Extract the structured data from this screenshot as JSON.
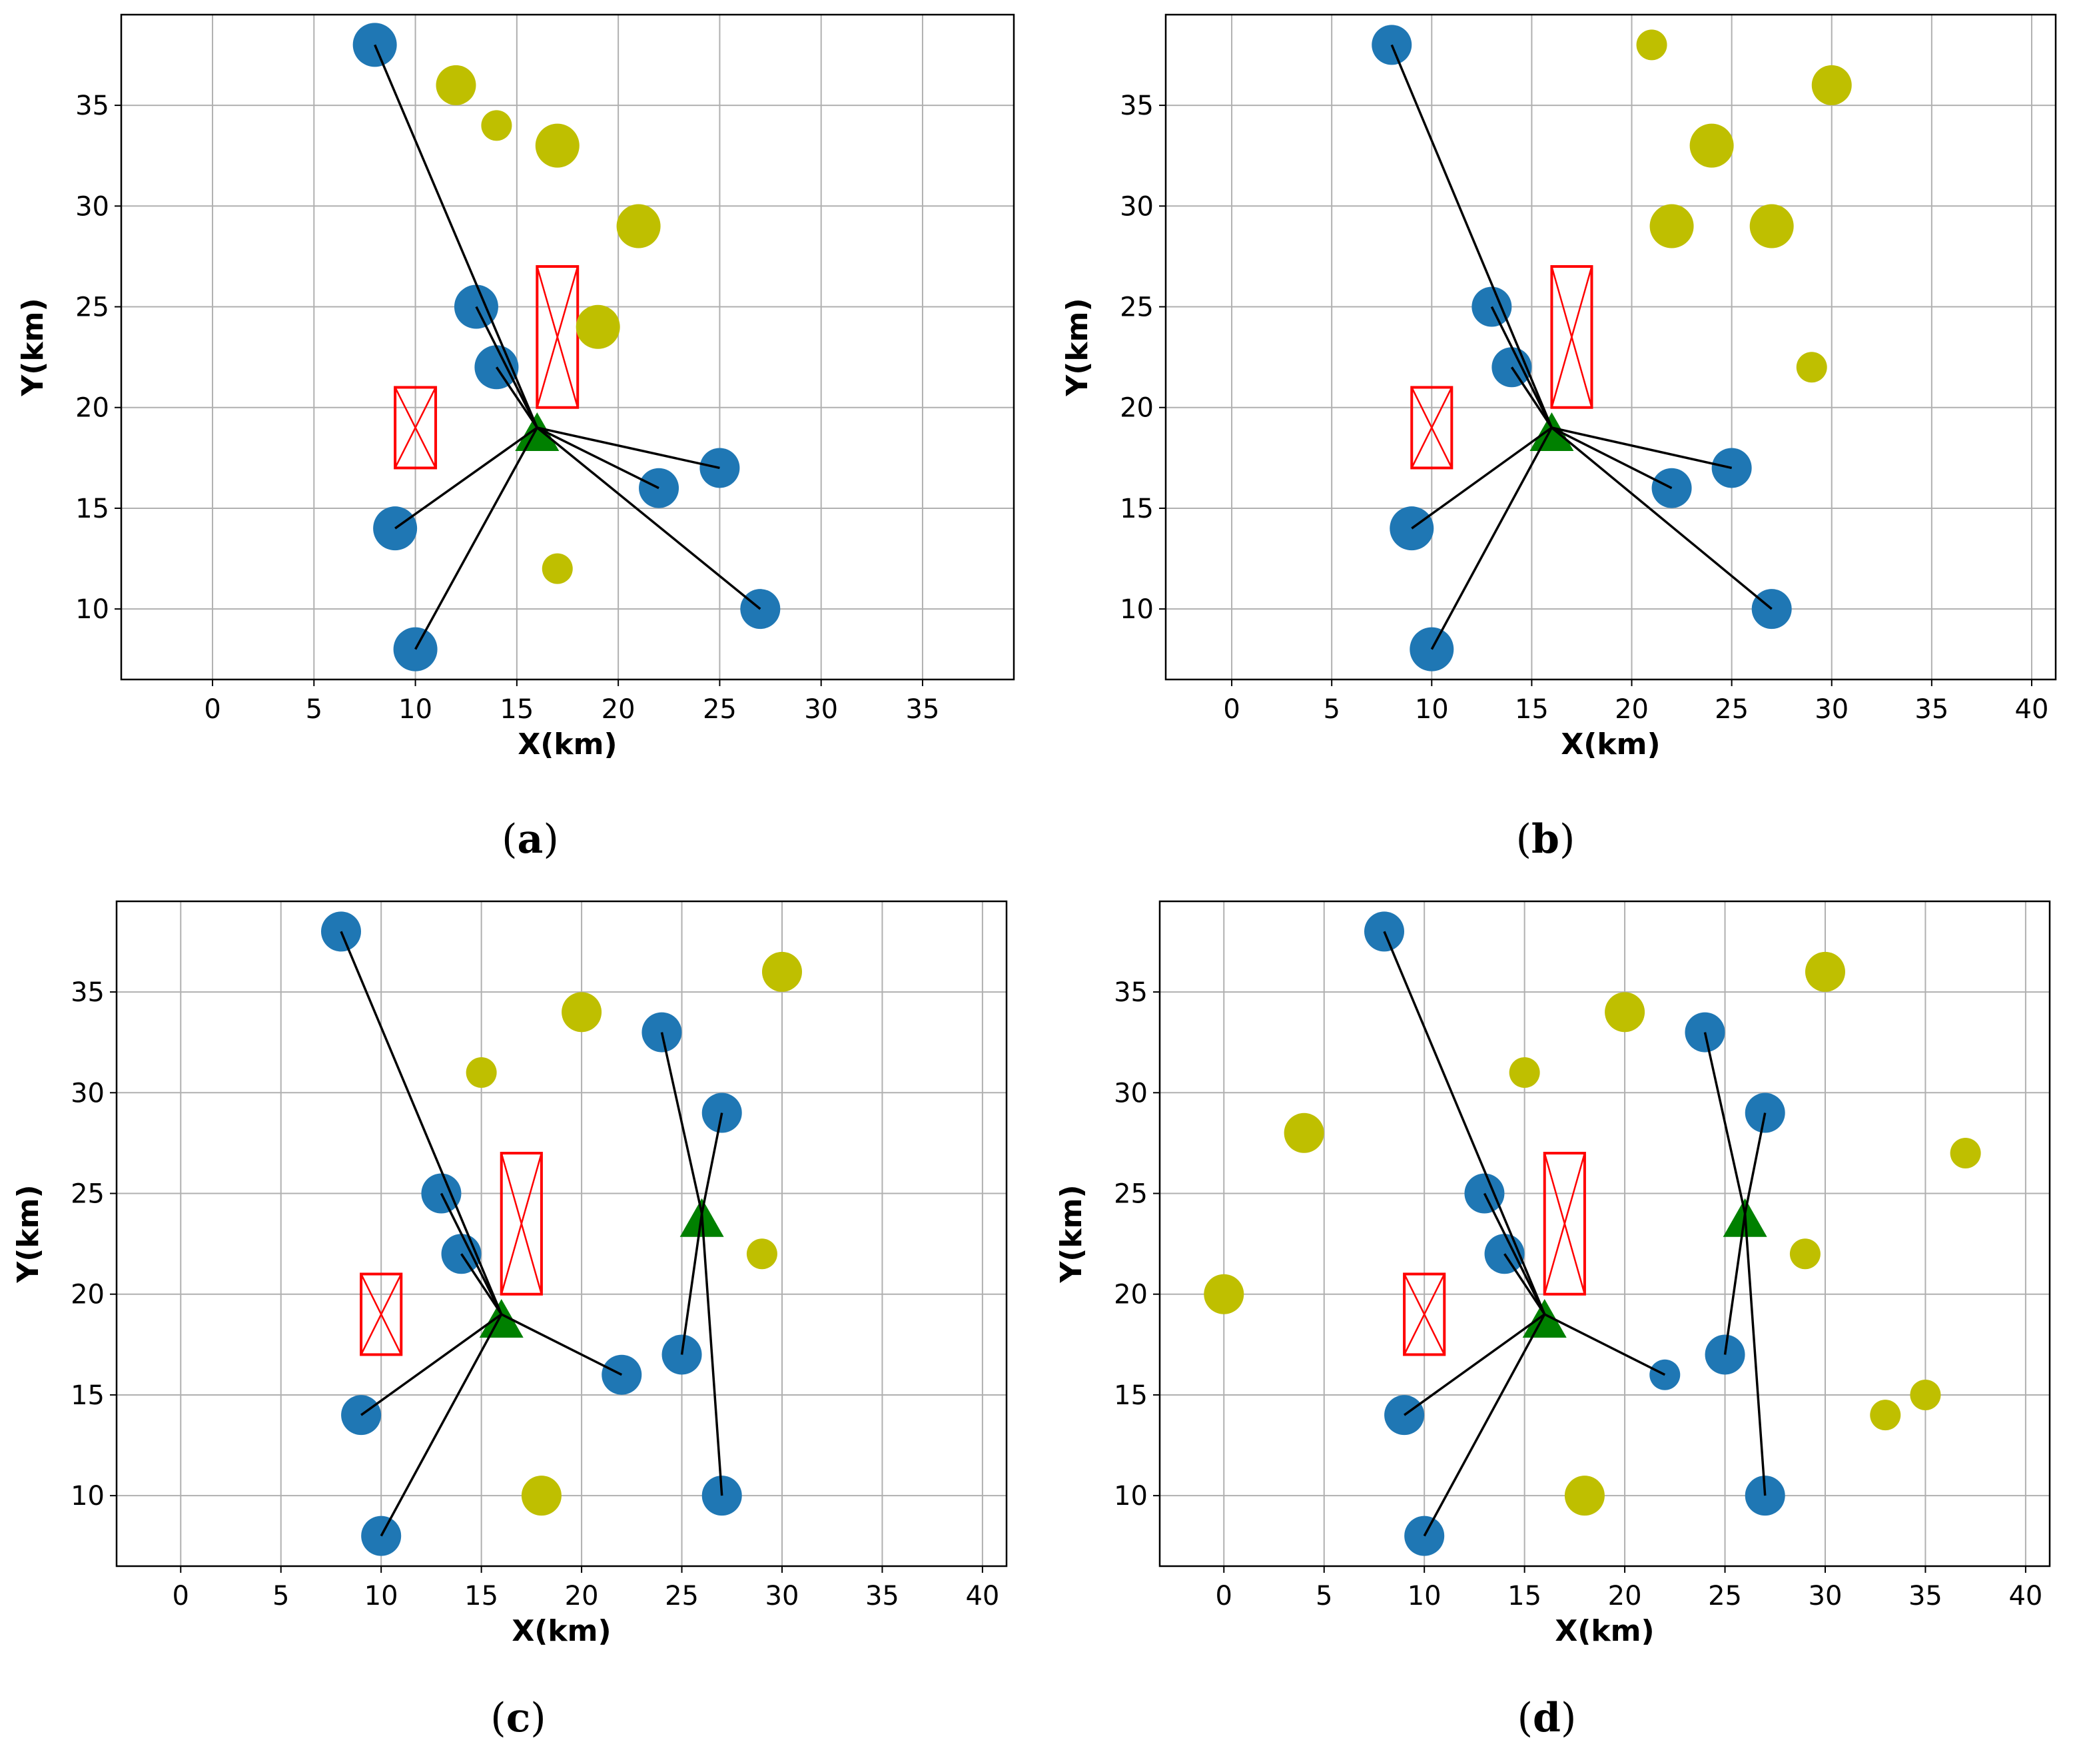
{
  "colors": {
    "served": "#1f77b4",
    "unserved": "#bfbf00",
    "station": "#008000",
    "obstacle": "#ff0000",
    "link": "#000000",
    "grid": "#b0b0b0"
  },
  "chart_data": [
    {
      "id": "a",
      "type": "scatter",
      "caption": "a",
      "xlabel": "X(km)",
      "ylabel": "Y(km)",
      "xlim": [
        -4.5,
        39.5
      ],
      "ylim": [
        6.5,
        39.5
      ],
      "xticks": [
        0,
        5,
        10,
        15,
        20,
        25,
        30,
        35
      ],
      "yticks": [
        10,
        15,
        20,
        25,
        30,
        35
      ],
      "grid": true,
      "stations": [
        {
          "x": 16,
          "y": 19
        }
      ],
      "served_users": [
        {
          "x": 8,
          "y": 38,
          "s": "l",
          "station": 0
        },
        {
          "x": 13,
          "y": 25,
          "s": "l",
          "station": 0
        },
        {
          "x": 14,
          "y": 22,
          "s": "l",
          "station": 0
        },
        {
          "x": 9,
          "y": 14,
          "s": "l",
          "station": 0
        },
        {
          "x": 10,
          "y": 8,
          "s": "l",
          "station": 0
        },
        {
          "x": 22,
          "y": 16,
          "s": "m",
          "station": 0
        },
        {
          "x": 25,
          "y": 17,
          "s": "m",
          "station": 0
        },
        {
          "x": 27,
          "y": 10,
          "s": "m",
          "station": 0
        }
      ],
      "unserved_users": [
        {
          "x": 12,
          "y": 36,
          "s": "m"
        },
        {
          "x": 14,
          "y": 34,
          "s": "s"
        },
        {
          "x": 17,
          "y": 33,
          "s": "l"
        },
        {
          "x": 21,
          "y": 29,
          "s": "l"
        },
        {
          "x": 19,
          "y": 24,
          "s": "l"
        },
        {
          "x": 17,
          "y": 12,
          "s": "s"
        }
      ],
      "obstacles": [
        {
          "x0": 9,
          "x1": 11,
          "y0": 17,
          "y1": 21
        },
        {
          "x0": 16,
          "x1": 18,
          "y0": 20,
          "y1": 27
        }
      ]
    },
    {
      "id": "b",
      "type": "scatter",
      "caption": "b",
      "xlabel": "X(km)",
      "ylabel": "Y(km)",
      "xlim": [
        -3.3,
        41.2
      ],
      "ylim": [
        6.5,
        39.5
      ],
      "xticks": [
        0,
        5,
        10,
        15,
        20,
        25,
        30,
        35,
        40
      ],
      "yticks": [
        10,
        15,
        20,
        25,
        30,
        35
      ],
      "grid": true,
      "stations": [
        {
          "x": 16,
          "y": 19
        }
      ],
      "served_users": [
        {
          "x": 8,
          "y": 38,
          "s": "m",
          "station": 0
        },
        {
          "x": 13,
          "y": 25,
          "s": "m",
          "station": 0
        },
        {
          "x": 14,
          "y": 22,
          "s": "m",
          "station": 0
        },
        {
          "x": 9,
          "y": 14,
          "s": "l",
          "station": 0
        },
        {
          "x": 10,
          "y": 8,
          "s": "l",
          "station": 0
        },
        {
          "x": 22,
          "y": 16,
          "s": "m",
          "station": 0
        },
        {
          "x": 25,
          "y": 17,
          "s": "m",
          "station": 0
        },
        {
          "x": 27,
          "y": 10,
          "s": "m",
          "station": 0
        }
      ],
      "unserved_users": [
        {
          "x": 21,
          "y": 38,
          "s": "s"
        },
        {
          "x": 30,
          "y": 36,
          "s": "m"
        },
        {
          "x": 24,
          "y": 33,
          "s": "l"
        },
        {
          "x": 22,
          "y": 29,
          "s": "l"
        },
        {
          "x": 27,
          "y": 29,
          "s": "l"
        },
        {
          "x": 29,
          "y": 22,
          "s": "s"
        }
      ],
      "obstacles": [
        {
          "x0": 9,
          "x1": 11,
          "y0": 17,
          "y1": 21
        },
        {
          "x0": 16,
          "x1": 18,
          "y0": 20,
          "y1": 27
        }
      ]
    },
    {
      "id": "c",
      "type": "scatter",
      "caption": "c",
      "xlabel": "X(km)",
      "ylabel": "Y(km)",
      "xlim": [
        -3.2,
        41.2
      ],
      "ylim": [
        6.5,
        39.5
      ],
      "xticks": [
        0,
        5,
        10,
        15,
        20,
        25,
        30,
        35,
        40
      ],
      "yticks": [
        10,
        15,
        20,
        25,
        30,
        35
      ],
      "grid": true,
      "stations": [
        {
          "x": 16,
          "y": 19
        },
        {
          "x": 26,
          "y": 24
        }
      ],
      "served_users": [
        {
          "x": 8,
          "y": 38,
          "s": "m",
          "station": 0
        },
        {
          "x": 13,
          "y": 25,
          "s": "m",
          "station": 0
        },
        {
          "x": 14,
          "y": 22,
          "s": "m",
          "station": 0
        },
        {
          "x": 9,
          "y": 14,
          "s": "m",
          "station": 0
        },
        {
          "x": 10,
          "y": 8,
          "s": "m",
          "station": 0
        },
        {
          "x": 22,
          "y": 16,
          "s": "m",
          "station": 0
        },
        {
          "x": 24,
          "y": 33,
          "s": "m",
          "station": 1
        },
        {
          "x": 27,
          "y": 29,
          "s": "m",
          "station": 1
        },
        {
          "x": 25,
          "y": 17,
          "s": "m",
          "station": 1
        },
        {
          "x": 27,
          "y": 10,
          "s": "m",
          "station": 1
        }
      ],
      "unserved_users": [
        {
          "x": 30,
          "y": 36,
          "s": "m"
        },
        {
          "x": 20,
          "y": 34,
          "s": "m"
        },
        {
          "x": 15,
          "y": 31,
          "s": "s"
        },
        {
          "x": 29,
          "y": 22,
          "s": "s"
        },
        {
          "x": 18,
          "y": 10,
          "s": "m"
        }
      ],
      "obstacles": [
        {
          "x0": 9,
          "x1": 11,
          "y0": 17,
          "y1": 21
        },
        {
          "x0": 16,
          "x1": 18,
          "y0": 20,
          "y1": 27
        }
      ]
    },
    {
      "id": "d",
      "type": "scatter",
      "caption": "d",
      "xlabel": "X(km)",
      "ylabel": "Y(km)",
      "xlim": [
        -3.2,
        41.2
      ],
      "ylim": [
        6.5,
        39.5
      ],
      "xticks": [
        0,
        5,
        10,
        15,
        20,
        25,
        30,
        35,
        40
      ],
      "yticks": [
        10,
        15,
        20,
        25,
        30,
        35
      ],
      "grid": true,
      "stations": [
        {
          "x": 16,
          "y": 19
        },
        {
          "x": 26,
          "y": 24
        }
      ],
      "served_users": [
        {
          "x": 8,
          "y": 38,
          "s": "m",
          "station": 0
        },
        {
          "x": 13,
          "y": 25,
          "s": "m",
          "station": 0
        },
        {
          "x": 14,
          "y": 22,
          "s": "m",
          "station": 0
        },
        {
          "x": 9,
          "y": 14,
          "s": "m",
          "station": 0
        },
        {
          "x": 10,
          "y": 8,
          "s": "m",
          "station": 0
        },
        {
          "x": 22,
          "y": 16,
          "s": "s",
          "station": 0
        },
        {
          "x": 24,
          "y": 33,
          "s": "m",
          "station": 1
        },
        {
          "x": 27,
          "y": 29,
          "s": "m",
          "station": 1
        },
        {
          "x": 25,
          "y": 17,
          "s": "m",
          "station": 1
        },
        {
          "x": 27,
          "y": 10,
          "s": "m",
          "station": 1
        }
      ],
      "unserved_users": [
        {
          "x": 30,
          "y": 36,
          "s": "m"
        },
        {
          "x": 20,
          "y": 34,
          "s": "m"
        },
        {
          "x": 15,
          "y": 31,
          "s": "s"
        },
        {
          "x": 4,
          "y": 28,
          "s": "m"
        },
        {
          "x": 37,
          "y": 27,
          "s": "s"
        },
        {
          "x": 29,
          "y": 22,
          "s": "s"
        },
        {
          "x": 0,
          "y": 20,
          "s": "m"
        },
        {
          "x": 35,
          "y": 15,
          "s": "s"
        },
        {
          "x": 33,
          "y": 14,
          "s": "s"
        },
        {
          "x": 18,
          "y": 10,
          "s": "m"
        }
      ],
      "obstacles": [
        {
          "x0": 9,
          "x1": 11,
          "y0": 17,
          "y1": 21
        },
        {
          "x0": 16,
          "x1": 18,
          "y0": 20,
          "y1": 27
        }
      ]
    }
  ]
}
